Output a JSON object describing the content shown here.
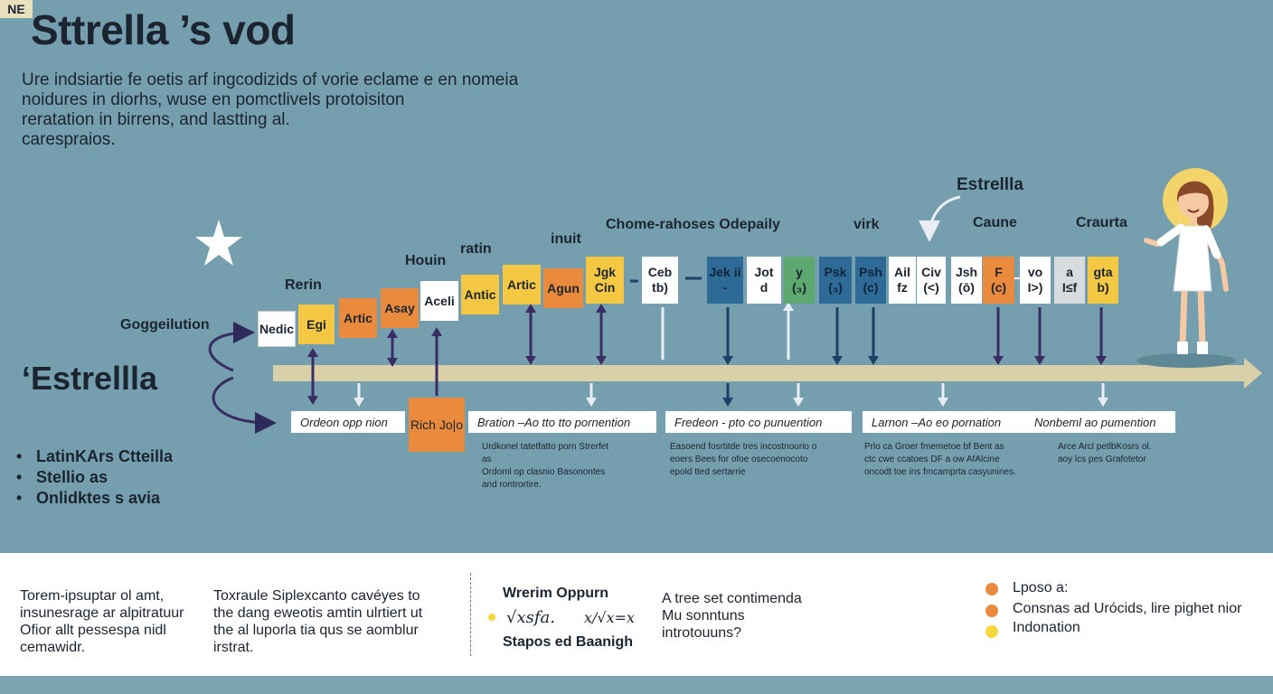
{
  "title": "Sttrella ’s vod",
  "intro_lines": [
    "Ure indsiartie fe oetis arf ingcodizids of vorie eclame e en nomeia",
    "noidures in diorhs, wuse en pomctlivels protoisiton",
    "reratation in birrens, and lastting al.",
    "carespraios."
  ],
  "side_label": "Goggeilution",
  "brand": "‘Estrellla",
  "start_tag": "NE",
  "bullets": [
    "LatinKArs Ctteilla",
    "Stellio as",
    "Onlidktes s avia"
  ],
  "group_labels": {
    "rerin": "Rerin",
    "houin": "Houin",
    "ratin": "ratin",
    "inuit": "inuit",
    "chome": "Chome-rahoses Odepaily",
    "virk": "virk",
    "estrella": "Estrellla",
    "caune": "Caune",
    "craurta": "Craurta"
  },
  "blocks": [
    {
      "text": "Nedic",
      "color": "#ffffff"
    },
    {
      "text": "Egi",
      "color": "#f4c842"
    },
    {
      "text": "Artic",
      "color": "#e98a3c"
    },
    {
      "text": "Asay",
      "color": "#e98a3c"
    },
    {
      "text": "Aceli",
      "color": "#ffffff"
    },
    {
      "text": "Antic",
      "color": "#f4c842"
    },
    {
      "text": "Artic",
      "color": "#f4c842"
    },
    {
      "text": "Agun",
      "color": "#e98a3c"
    },
    {
      "text": "Jgk Cin",
      "color": "#f4c842"
    },
    {
      "text": "Ceb tb)",
      "color": "#ffffff"
    },
    {
      "text": "Jek ii -",
      "color": "#2e6a96"
    },
    {
      "text": "Jot d",
      "color": "#ffffff"
    },
    {
      "text": "y (₃)",
      "color": "#5ca86e"
    },
    {
      "text": "Psk (₃)",
      "color": "#2e6a96"
    },
    {
      "text": "Psh (c)",
      "color": "#2e6a96"
    },
    {
      "text": "Ail fz",
      "color": "#ffffff"
    },
    {
      "text": "Civ (<)",
      "color": "#ffffff"
    },
    {
      "text": "Jsh (ō)",
      "color": "#ffffff"
    },
    {
      "text": "F (c)",
      "color": "#e98a3c"
    },
    {
      "text": "vo I>)",
      "color": "#ffffff"
    },
    {
      "text": "a I≤f",
      "color": "#d9dcdf"
    },
    {
      "text": "gta b)",
      "color": "#f4c842"
    }
  ],
  "rich_box": "Rich Jo|o",
  "captions": [
    "Ordeon opp nion",
    "Bration –Ao tto tto pornention",
    "Fredeon - pto co punuention",
    "Larnon –Ao eo pornation",
    "Nonbeml ao pumention"
  ],
  "small_texts": [
    "Urdkonel tatetfatto porn Strerfet\nas\nOrdoml op clasnio Basonontes\nand rontrortire.",
    "Easoend fosrtitde tres incostnourio o\neoers Bees for ofoe osecoenocoto\nepold tted sertarrie",
    "Prlo ca Groer fmemetoe bf Bent as\nctc cwe ccatoes DF a ow AfAlcine\noncodt toe ins fmcamprta casyunines.",
    "Arce Arcl petlbKosrs ol.\naoy lcs pes Grafotetor"
  ],
  "bottom": {
    "col1": [
      "Torem-ipsuptar ol amt,",
      "insunesrage ar alpitratuur",
      "Ofior allt pessespa nidl",
      "cemawidr."
    ],
    "col2": [
      "Toxraule Siplexcanto cavéyes to",
      "the dang eweotis amtin ulrtiert ut",
      "the al luporla tia qus se aomblur",
      "irstrat."
    ],
    "col3_title": "Wrerim Oppurn",
    "formula1": "√xsfa.",
    "formula2": "x/√x=x",
    "col3_sub": "Stapos ed Baanigh",
    "col4": [
      "A tree set contimenda",
      "Mu sonntuns",
      "introtouuns?"
    ],
    "legend": [
      {
        "label": "Lposo a:",
        "color": "#e98a3c"
      },
      {
        "label": "Consnas ad Urócids, lire pighet nior",
        "color": "#e98a3c"
      },
      {
        "label": "Indonation",
        "color": "#f4d83c"
      }
    ]
  }
}
